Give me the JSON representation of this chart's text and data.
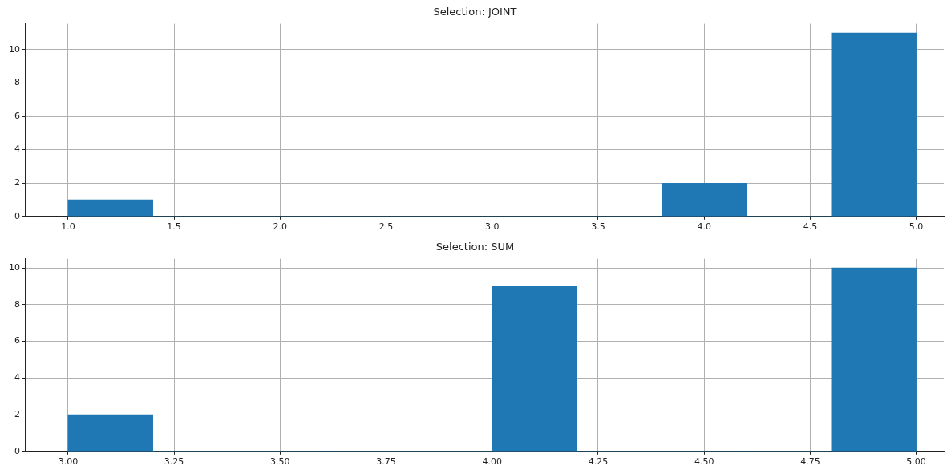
{
  "chart_data": [
    {
      "type": "histogram",
      "title": "Selection: JOINT",
      "bins": [
        1.0,
        1.4,
        1.8,
        2.2,
        2.6,
        3.0,
        3.4,
        3.8,
        4.2,
        4.6,
        5.0
      ],
      "values": [
        1,
        0,
        0,
        0,
        0,
        0,
        0,
        2,
        0,
        11
      ],
      "color": "#1f77b4",
      "xlim": [
        0.8,
        5.13
      ],
      "ylim": [
        0,
        11.55
      ],
      "xticks": [
        {
          "value": 1.0,
          "label": "1.0"
        },
        1.5,
        {
          "value": 2.0,
          "label": "2.0"
        },
        2.5,
        {
          "value": 3.0,
          "label": "3.0"
        },
        3.5,
        {
          "value": 4.0,
          "label": "4.0"
        },
        4.5,
        {
          "value": 5.0,
          "label": "5.0"
        }
      ],
      "yticks": [
        0,
        2,
        4,
        6,
        8,
        10
      ],
      "grid": true
    },
    {
      "type": "histogram",
      "title": "Selection: SUM",
      "bins": [
        3.0,
        3.2,
        3.4,
        3.6,
        3.8,
        4.0,
        4.2,
        4.4,
        4.6,
        4.8,
        5.0
      ],
      "values": [
        2,
        0,
        0,
        0,
        0,
        9,
        0,
        0,
        0,
        10
      ],
      "color": "#1f77b4",
      "xlim": [
        2.9,
        5.065
      ],
      "ylim": [
        0,
        10.5
      ],
      "xticks": [
        {
          "value": 3.0,
          "label": "3.00"
        },
        3.25,
        {
          "value": 3.5,
          "label": "3.50"
        },
        3.75,
        {
          "value": 4.0,
          "label": "4.00"
        },
        4.25,
        {
          "value": 4.5,
          "label": "4.50"
        },
        4.75,
        {
          "value": 5.0,
          "label": "5.00"
        }
      ],
      "yticks": [
        0,
        2,
        4,
        6,
        8,
        10
      ],
      "grid": true
    }
  ]
}
